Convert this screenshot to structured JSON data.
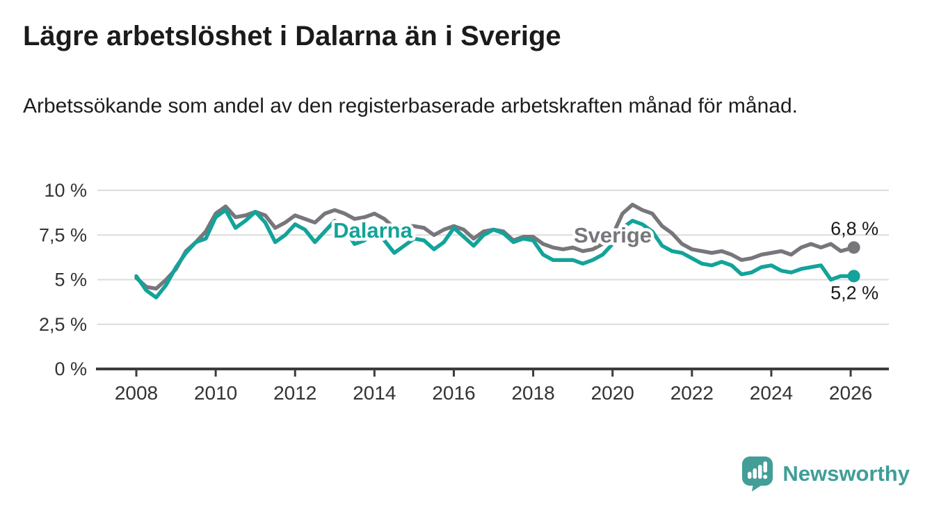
{
  "header": {
    "title": "Lägre arbetslöshet i Dalarna än i Sverige",
    "subtitle": "Arbetssökande som andel av den registerbaserade arbetskraften månad för månad."
  },
  "footer": {
    "brand": "Newsworthy",
    "logo_icon": "newsworthy-speech-bubble-bar-chart-icon"
  },
  "colors": {
    "dalarna_line": "#13a39a",
    "sverige_line": "#76767b",
    "axis": "#3c3c3c",
    "gridline": "#dcdcdc",
    "tick_label": "#333333",
    "end_label_text": "#1a1a1a",
    "title_text": "#1b1b1b",
    "brand_teal": "#3f9e98",
    "background": "#ffffff"
  },
  "chart_data": {
    "type": "line",
    "title": "Lägre arbetslöshet i Dalarna än i Sverige",
    "subtitle": "Arbetssökande som andel av den registerbaserade arbetskraften månad för månad.",
    "xlabel": "",
    "ylabel": "",
    "x_unit": "year (monthly series, quarterly approximation)",
    "y_unit": "percent of registered labour force",
    "xlim": [
      2007.9,
      2027.0
    ],
    "ylim": [
      0,
      10
    ],
    "grid": "horizontal",
    "legend_position": "inline-labels-on-lines",
    "xticks": [
      2008,
      2010,
      2012,
      2014,
      2016,
      2018,
      2020,
      2022,
      2024,
      2026
    ],
    "yticks": [
      {
        "value": 0,
        "label": "0 %"
      },
      {
        "value": 2.5,
        "label": "2,5 %"
      },
      {
        "value": 5,
        "label": "5 %"
      },
      {
        "value": 7.5,
        "label": "7,5 %"
      },
      {
        "value": 10,
        "label": "10 %"
      }
    ],
    "x": [
      2008,
      2008.25,
      2008.5,
      2008.75,
      2009,
      2009.25,
      2009.5,
      2009.75,
      2010,
      2010.25,
      2010.5,
      2010.75,
      2011,
      2011.25,
      2011.5,
      2011.75,
      2012,
      2012.25,
      2012.5,
      2012.75,
      2013,
      2013.25,
      2013.5,
      2013.75,
      2014,
      2014.25,
      2014.5,
      2014.75,
      2015,
      2015.25,
      2015.5,
      2015.75,
      2016,
      2016.25,
      2016.5,
      2016.75,
      2017,
      2017.25,
      2017.5,
      2017.75,
      2018,
      2018.25,
      2018.5,
      2018.75,
      2019,
      2019.25,
      2019.5,
      2019.75,
      2020,
      2020.25,
      2020.5,
      2020.75,
      2021,
      2021.25,
      2021.5,
      2021.75,
      2022,
      2022.25,
      2022.5,
      2022.75,
      2023,
      2023.25,
      2023.5,
      2023.75,
      2024,
      2024.25,
      2024.5,
      2024.75,
      2025,
      2025.25,
      2025.5,
      2025.75,
      2026.08
    ],
    "series": [
      {
        "name": "Sverige",
        "color": "#76767b",
        "end_label": "6,8 %",
        "end_value": 6.8,
        "values": [
          5.1,
          4.6,
          4.5,
          5.0,
          5.6,
          6.6,
          7.1,
          7.7,
          8.7,
          9.1,
          8.5,
          8.6,
          8.8,
          8.6,
          7.9,
          8.2,
          8.6,
          8.4,
          8.2,
          8.7,
          8.9,
          8.7,
          8.4,
          8.5,
          8.7,
          8.4,
          7.9,
          8.0,
          8.0,
          7.9,
          7.5,
          7.8,
          8.0,
          7.8,
          7.3,
          7.7,
          7.8,
          7.7,
          7.2,
          7.4,
          7.4,
          7.0,
          6.8,
          6.7,
          6.8,
          6.6,
          6.7,
          7.0,
          7.5,
          8.7,
          9.2,
          8.9,
          8.7,
          8.0,
          7.6,
          7.0,
          6.7,
          6.6,
          6.5,
          6.6,
          6.4,
          6.1,
          6.2,
          6.4,
          6.5,
          6.6,
          6.4,
          6.8,
          7.0,
          6.8,
          7.0,
          6.6,
          6.8
        ]
      },
      {
        "name": "Dalarna",
        "color": "#13a39a",
        "end_label": "5,2 %",
        "end_value": 5.2,
        "values": [
          5.2,
          4.4,
          4.0,
          4.7,
          5.7,
          6.5,
          7.1,
          7.3,
          8.5,
          8.9,
          7.9,
          8.3,
          8.8,
          8.2,
          7.1,
          7.5,
          8.1,
          7.8,
          7.1,
          7.7,
          8.3,
          7.8,
          7.0,
          7.2,
          7.9,
          7.2,
          6.5,
          6.9,
          7.3,
          7.2,
          6.7,
          7.1,
          7.9,
          7.4,
          6.9,
          7.5,
          7.8,
          7.6,
          7.1,
          7.3,
          7.2,
          6.4,
          6.1,
          6.1,
          6.1,
          5.9,
          6.1,
          6.4,
          7.0,
          7.9,
          8.3,
          8.1,
          7.7,
          6.9,
          6.6,
          6.5,
          6.2,
          5.9,
          5.8,
          6.0,
          5.8,
          5.3,
          5.4,
          5.7,
          5.8,
          5.5,
          5.4,
          5.6,
          5.7,
          5.8,
          5.0,
          5.2,
          5.2
        ]
      }
    ]
  }
}
